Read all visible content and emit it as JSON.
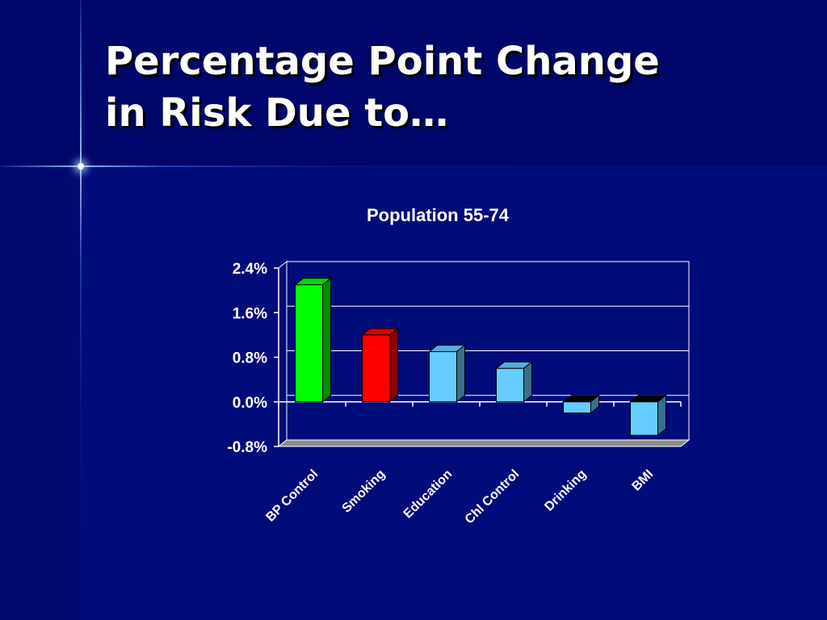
{
  "slide": {
    "title_line1": "Percentage Point Change",
    "title_line2": "in Risk Due to…"
  },
  "colors": {
    "background": "#000c7a",
    "title_band": "#00066a",
    "axis_and_text": "#ffffff",
    "floor": "#8c8c8c"
  },
  "chart_data": {
    "type": "bar",
    "title": "Population 55-74",
    "xlabel": "",
    "ylabel": "",
    "categories": [
      "BP Control",
      "Smoking",
      "Education",
      "Chl Control",
      "Drinking",
      "BMI"
    ],
    "values": [
      2.1,
      1.2,
      0.9,
      0.6,
      -0.2,
      -0.6
    ],
    "value_unit": "%",
    "bar_colors": [
      "#00ff00",
      "#ff0000",
      "#66ccff",
      "#66ccff",
      "#66ccff",
      "#66ccff"
    ],
    "ylim": [
      -0.8,
      2.4
    ],
    "yticks": [
      "2.4%",
      "1.6%",
      "0.8%",
      "0.0%",
      "-0.8%"
    ],
    "grid": true,
    "legend": "none",
    "style": "3d-column"
  }
}
